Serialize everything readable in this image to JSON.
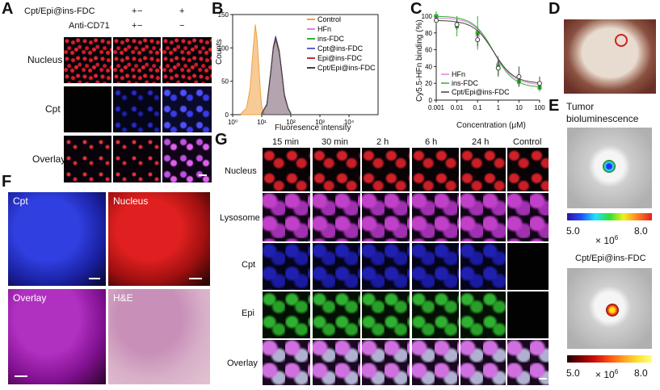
{
  "panels": {
    "A": "A",
    "B": "B",
    "C": "C",
    "D": "D",
    "E": "E",
    "F": "F",
    "G": "G"
  },
  "panelA": {
    "row_headers": [
      "Cpt/Epi@ins-FDC",
      "Anti-CD71"
    ],
    "col_signs": [
      [
        "−",
        "−"
      ],
      [
        "+",
        "+"
      ],
      [
        "+",
        "−"
      ]
    ],
    "rows": [
      "Nucleus",
      "Cpt",
      "Overlay"
    ]
  },
  "panelB": {
    "ylabel": "Counts",
    "xlabel": "Fluoresence intensity",
    "ymax_label": "150",
    "yticks": [
      "0",
      "50",
      "100",
      "150"
    ],
    "xticks": [
      "10⁰",
      "10¹",
      "10²",
      "10³",
      "10⁴"
    ]
  },
  "panelC": {
    "ylabel": "Cy5.5-HFn binding (%)",
    "xlabel": "Concentration (μM)",
    "yticks": [
      "0",
      "20",
      "40",
      "60",
      "80",
      "100"
    ],
    "xticks": [
      "0.001",
      "0.01",
      "0.1",
      "1",
      "10",
      "100"
    ]
  },
  "panelD": {},
  "panelE": {
    "title1": "Tumor",
    "title2": "bioluminescence",
    "scale1_min": "5.0",
    "scale1_max": "8.0",
    "scale1_unit": "× 10",
    "scale1_exp": "6",
    "title3": "Cpt/Epi@ins-FDC",
    "scale2_min": "5.0",
    "scale2_max": "8.0",
    "scale2_unit": "× 10",
    "scale2_exp": "6"
  },
  "panelF": {
    "labels": [
      "Cpt",
      "Nucleus",
      "Overlay",
      "H&E"
    ]
  },
  "panelG": {
    "cols": [
      "15 min",
      "30 min",
      "2 h",
      "6 h",
      "24 h",
      "Control"
    ],
    "rows": [
      "Nucleus",
      "Lysosome",
      "Cpt",
      "Epi",
      "Overlay"
    ]
  },
  "chart_data": [
    {
      "type": "area",
      "xscale": "log",
      "xlim": [
        1,
        100000
      ],
      "ylim": [
        0,
        150
      ],
      "xlabel": "Fluoresence intensity",
      "ylabel": "Counts",
      "legend_position": "top-right",
      "series": [
        {
          "name": "Control",
          "color": "#f0a040",
          "x": [
            2,
            3,
            4,
            5,
            6,
            7,
            8,
            9,
            10,
            12
          ],
          "values": [
            2,
            10,
            40,
            95,
            135,
            110,
            70,
            35,
            12,
            2
          ]
        },
        {
          "name": "HFn",
          "color": "#e080e0",
          "x": [
            10,
            15,
            20,
            25,
            30,
            40,
            50,
            60,
            80,
            100
          ],
          "values": [
            2,
            15,
            60,
            100,
            115,
            95,
            60,
            30,
            10,
            2
          ]
        },
        {
          "name": "ins-FDC",
          "color": "#30b030",
          "x": [
            10,
            15,
            20,
            25,
            30,
            40,
            50,
            60,
            80,
            100
          ],
          "values": [
            2,
            14,
            58,
            98,
            112,
            92,
            58,
            28,
            9,
            2
          ]
        },
        {
          "name": "Cpt@ins-FDC",
          "color": "#6060d0",
          "x": [
            10,
            15,
            20,
            25,
            30,
            40,
            50,
            60,
            80,
            100
          ],
          "values": [
            2,
            16,
            62,
            102,
            118,
            96,
            61,
            31,
            10,
            2
          ]
        },
        {
          "name": "Epi@ins-FDC",
          "color": "#c03040",
          "x": [
            10,
            15,
            20,
            25,
            30,
            40,
            50,
            60,
            80,
            100
          ],
          "values": [
            2,
            15,
            60,
            100,
            114,
            94,
            59,
            29,
            9,
            2
          ]
        },
        {
          "name": "Cpt/Epi@ins-FDC",
          "color": "#404040",
          "x": [
            10,
            15,
            20,
            25,
            30,
            40,
            50,
            60,
            80,
            100
          ],
          "values": [
            2,
            15,
            61,
            101,
            116,
            95,
            60,
            30,
            10,
            2
          ]
        }
      ]
    },
    {
      "type": "scatter",
      "xscale": "log",
      "xlim": [
        0.001,
        100
      ],
      "ylim": [
        0,
        100
      ],
      "xlabel": "Concentration (μM)",
      "ylabel": "Cy5.5-HFn binding (%)",
      "legend_position": "bottom-left",
      "series": [
        {
          "name": "HFn",
          "color": "#e080e0",
          "marker": "triangle",
          "x": [
            0.001,
            0.01,
            0.1,
            1,
            10,
            100
          ],
          "values": [
            98,
            92,
            78,
            45,
            25,
            18
          ],
          "err": [
            5,
            8,
            10,
            8,
            6,
            5
          ]
        },
        {
          "name": "ins-FDC",
          "color": "#30b030",
          "marker": "square",
          "x": [
            0.001,
            0.01,
            0.1,
            1,
            10,
            100
          ],
          "values": [
            100,
            88,
            80,
            40,
            22,
            15
          ],
          "err": [
            6,
            12,
            20,
            10,
            6,
            5
          ]
        },
        {
          "name": "Cpt/Epi@ins-FDC",
          "color": "#404040",
          "marker": "circle",
          "x": [
            0.001,
            0.01,
            0.1,
            1,
            10,
            100
          ],
          "values": [
            95,
            90,
            72,
            38,
            28,
            20
          ],
          "err": [
            5,
            6,
            8,
            10,
            12,
            8
          ]
        }
      ]
    }
  ]
}
